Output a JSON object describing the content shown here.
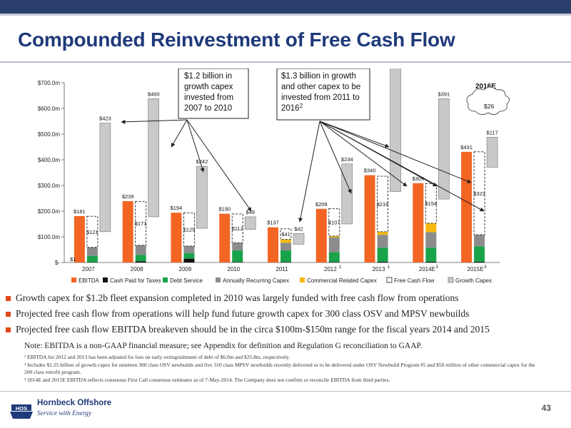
{
  "title": "Compounded Reinvestment of Free Cash Flow",
  "colors": {
    "ebitda": "#f26522",
    "cash_paid_for_taxes": "#111111",
    "debt_service": "#19a34a",
    "annually_recurring_capex": "#8c8c8c",
    "commercial_related_capex": "#f5b90f",
    "free_cash_flow": "#ffffff",
    "growth_capex": "#c9c9c9",
    "title_blue": "#1f3a7a"
  },
  "callouts": {
    "left": "$1.2 billion in growth capex invested from 2007 to 2010",
    "right": "$1.3 billion in growth and other capex to be invested from 2011 to 2016 ",
    "right_sup": "2",
    "year_label": "2016E",
    "cloud_value": "$26"
  },
  "chart_data": {
    "type": "bar",
    "title": "",
    "xlabel": "",
    "ylabel": "",
    "ylim": [
      0,
      700
    ],
    "yticks": [
      "$-",
      "$100.0m",
      "$200.0m",
      "$300.0m",
      "$400.0m",
      "$500.0m",
      "$600.0m",
      "$700.0m"
    ],
    "grid": false,
    "legend_position": "bottom",
    "categories": [
      "2007",
      "2008",
      "2009",
      "2010",
      "2011",
      "2012",
      "2013",
      "2014E",
      "2015E"
    ],
    "category_superscripts": [
      "",
      "",
      "",
      "",
      "",
      "1",
      "1",
      "3",
      "3"
    ],
    "series": [
      {
        "name": "EBITDA",
        "values": [
          181,
          239,
          194,
          190,
          137,
          209,
          340,
          309,
          431
        ]
      },
      {
        "name": "Cash Paid for Taxes",
        "values": [
          1,
          5,
          15,
          2,
          2,
          2,
          3,
          3,
          3
        ]
      },
      {
        "name": "Debt Service",
        "values": [
          25,
          25,
          22,
          45,
          45,
          38,
          55,
          55,
          60
        ]
      },
      {
        "name": "Annually Recurring Capex",
        "values": [
          33,
          37,
          27,
          30,
          30,
          58,
          50,
          60,
          45
        ]
      },
      {
        "name": "Commercial Related Capex",
        "values": [
          0,
          0,
          0,
          0,
          13,
          5,
          12,
          35,
          0
        ]
      },
      {
        "name": "Free Cash Flow",
        "values": [
          121,
          171,
          129,
          112,
          41,
          107,
          216,
          154,
          323
        ]
      },
      {
        "name": "Growth Capex",
        "values": [
          423,
          460,
          242,
          49,
          42,
          234,
          490,
          391,
          117
        ]
      }
    ],
    "data_labels": {
      "ebitda": [
        "$181",
        "$239",
        "$194",
        "$190",
        "$137",
        "$209",
        "$340",
        "$309",
        "$431"
      ],
      "free_cash_flow": [
        "$121",
        "$171",
        "$129",
        "$112",
        "$41",
        "$107",
        "$216",
        "$154",
        "$323"
      ],
      "growth_capex": [
        "$423",
        "$460",
        "$242",
        "$49",
        "$42",
        "$234",
        "$490",
        "$391",
        "$117"
      ],
      "taxes_2007": "$1"
    }
  },
  "bullets": [
    "Growth capex for $1.2b fleet expansion completed in 2010 was largely funded with free cash flow from operations",
    "Projected free cash flow from operations will help fund future growth capex for 300 class OSV and MPSV newbuilds",
    "Projected free cash flow EBITDA breakeven should be in the circa $100m-$150m range for the fiscal years 2014 and 2015"
  ],
  "note": "Note:  EBITDA is a non-GAAP financial measure; see Appendix for definition and Regulation G reconciliation to GAAP.",
  "footnotes": [
    "¹ EBITDA for 2012 and 2013 has been adjusted for loss on early extinguishment of debt of $6.0m and $25.8m, respectively.",
    "² Includes $1.25 billion of growth capex for nineteen 300 class OSV newbuilds and five 310 class MPSV newbuilds recently delivered or to be delivered under OSV Newbuild Program #5 and $50 million of other commercial capex for the 200 class retrofit program.",
    "³ 2014E and 2015E EBITDA reflects consensus First Call consensus estimates as of 7-May-2014.  The Company does not confirm or reconcile EBITDA from third parties."
  ],
  "footer": {
    "brand": "Hornbeck Offshore",
    "tagline": "Service with Energy",
    "logo_letters": "HOS",
    "page_number": "43"
  }
}
